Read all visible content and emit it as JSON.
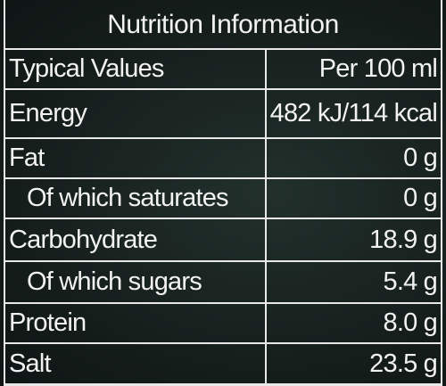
{
  "title": "Nutrition Information",
  "table": {
    "header": [
      "Typical Values",
      "Per 100 ml"
    ],
    "rows": [
      [
        "Energy",
        "482 kJ/114 kcal"
      ],
      [
        "Fat",
        "0 g"
      ],
      [
        "Of which saturates",
        "0 g"
      ],
      [
        "Carbohydrate",
        "18.9 g"
      ],
      [
        "Of which sugars",
        "5.4 g"
      ],
      [
        "Protein",
        "8.0 g"
      ],
      [
        "Salt",
        "23.5 g"
      ]
    ]
  }
}
